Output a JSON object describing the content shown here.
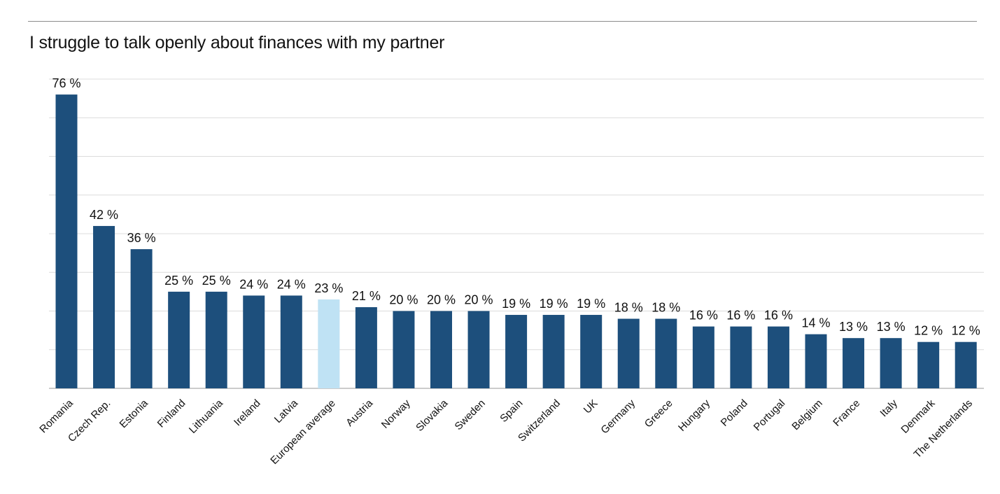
{
  "chart_data": {
    "type": "bar",
    "title": "I struggle to talk openly about finances with my partner",
    "xlabel": "",
    "ylabel": "",
    "ylim": [
      0,
      80
    ],
    "grid": true,
    "value_suffix": " %",
    "categories": [
      "Romania",
      "Czech Rep.",
      "Estonia",
      "Finland",
      "Lithuania",
      "Ireland",
      "Latvia",
      "European average",
      "Austria",
      "Norway",
      "Slovakia",
      "Sweden",
      "Spain",
      "Switzerland",
      "UK",
      "Germany",
      "Greece",
      "Hungary",
      "Poland",
      "Portugal",
      "Belgium",
      "France",
      "Italy",
      "Denmark",
      "The Netherlands"
    ],
    "values": [
      76,
      42,
      36,
      25,
      25,
      24,
      24,
      23,
      21,
      20,
      20,
      20,
      19,
      19,
      19,
      18,
      18,
      16,
      16,
      16,
      14,
      13,
      13,
      12,
      12
    ],
    "highlight_category": "European average",
    "colors": {
      "bar": "#1d4f7c",
      "highlight": "#bfe2f4",
      "grid": "#dcdcdc",
      "axis": "#9a9a9a"
    }
  }
}
